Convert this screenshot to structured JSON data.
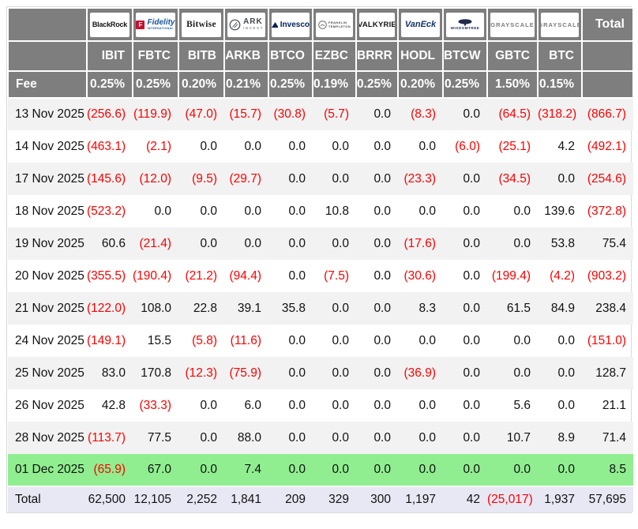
{
  "header": {
    "total_label": "Total",
    "logos": {
      "blackrock": {
        "name": "BlackRock",
        "text": "BlackRock"
      },
      "fidelity": {
        "name": "Fidelity",
        "badge": "F",
        "text": "Fidelity",
        "subtext": "INTERNATIONAL"
      },
      "bitwise": {
        "name": "Bitwise",
        "text": "Bitwise"
      },
      "ark": {
        "name": "ARK Invest",
        "text": "ARK",
        "subtext": "INVEST"
      },
      "invesco": {
        "name": "Invesco",
        "text": "Invesco"
      },
      "franklin": {
        "name": "Franklin Templeton",
        "line1": "FRANKLIN",
        "line2": "TEMPLETON"
      },
      "valkyrie": {
        "name": "Valkyrie",
        "text": "VALKYRIE"
      },
      "vaneck": {
        "name": "VanEck",
        "text": "VanEck"
      },
      "wisdomtree": {
        "name": "WisdomTree",
        "text": "WISDOMTREE"
      },
      "grayscale1": {
        "name": "Grayscale",
        "text": "GRAYSCALE"
      },
      "grayscale2": {
        "name": "Grayscale",
        "text": "GRAYSCALE"
      }
    }
  },
  "chart_data": {
    "type": "table",
    "tickers": [
      "IBIT",
      "FBTC",
      "BITB",
      "ARKB",
      "BTCO",
      "EZBC",
      "BRRR",
      "HODL",
      "BTCW",
      "GBTC",
      "BTC"
    ],
    "fee_label": "Fee",
    "fees": [
      "0.25%",
      "0.25%",
      "0.20%",
      "0.21%",
      "0.25%",
      "0.19%",
      "0.25%",
      "0.20%",
      "0.25%",
      "1.50%",
      "0.15%"
    ],
    "negative_format": "parentheses_red",
    "rows": [
      {
        "date": "13 Nov 2025",
        "values": [
          "(256.6)",
          "(119.9)",
          "(47.0)",
          "(15.7)",
          "(30.8)",
          "(5.7)",
          "0.0",
          "(8.3)",
          "0.0",
          "(64.5)",
          "(318.2)",
          "(866.7)"
        ]
      },
      {
        "date": "14 Nov 2025",
        "values": [
          "(463.1)",
          "(2.1)",
          "0.0",
          "0.0",
          "0.0",
          "0.0",
          "0.0",
          "0.0",
          "(6.0)",
          "(25.1)",
          "4.2",
          "(492.1)"
        ]
      },
      {
        "date": "17 Nov 2025",
        "values": [
          "(145.6)",
          "(12.0)",
          "(9.5)",
          "(29.7)",
          "0.0",
          "0.0",
          "0.0",
          "(23.3)",
          "0.0",
          "(34.5)",
          "0.0",
          "(254.6)"
        ]
      },
      {
        "date": "18 Nov 2025",
        "values": [
          "(523.2)",
          "0.0",
          "0.0",
          "0.0",
          "0.0",
          "10.8",
          "0.0",
          "0.0",
          "0.0",
          "0.0",
          "139.6",
          "(372.8)"
        ]
      },
      {
        "date": "19 Nov 2025",
        "values": [
          "60.6",
          "(21.4)",
          "0.0",
          "0.0",
          "0.0",
          "0.0",
          "0.0",
          "(17.6)",
          "0.0",
          "0.0",
          "53.8",
          "75.4"
        ]
      },
      {
        "date": "20 Nov 2025",
        "values": [
          "(355.5)",
          "(190.4)",
          "(21.2)",
          "(94.4)",
          "0.0",
          "(7.5)",
          "0.0",
          "(30.6)",
          "0.0",
          "(199.4)",
          "(4.2)",
          "(903.2)"
        ]
      },
      {
        "date": "21 Nov 2025",
        "values": [
          "(122.0)",
          "108.0",
          "22.8",
          "39.1",
          "35.8",
          "0.0",
          "0.0",
          "8.3",
          "0.0",
          "61.5",
          "84.9",
          "238.4"
        ]
      },
      {
        "date": "24 Nov 2025",
        "values": [
          "(149.1)",
          "15.5",
          "(5.8)",
          "(11.6)",
          "0.0",
          "0.0",
          "0.0",
          "0.0",
          "0.0",
          "0.0",
          "0.0",
          "(151.0)"
        ]
      },
      {
        "date": "25 Nov 2025",
        "values": [
          "83.0",
          "170.8",
          "(12.3)",
          "(75.9)",
          "0.0",
          "0.0",
          "0.0",
          "(36.9)",
          "0.0",
          "0.0",
          "0.0",
          "128.7"
        ]
      },
      {
        "date": "26 Nov 2025",
        "values": [
          "42.8",
          "(33.3)",
          "0.0",
          "6.0",
          "0.0",
          "0.0",
          "0.0",
          "0.0",
          "0.0",
          "5.6",
          "0.0",
          "21.1"
        ]
      },
      {
        "date": "28 Nov 2025",
        "values": [
          "(113.7)",
          "77.5",
          "0.0",
          "88.0",
          "0.0",
          "0.0",
          "0.0",
          "0.0",
          "0.0",
          "10.7",
          "8.9",
          "71.4"
        ]
      },
      {
        "date": "01 Dec 2025",
        "values": [
          "(65.9)",
          "67.0",
          "0.0",
          "7.4",
          "0.0",
          "0.0",
          "0.0",
          "0.0",
          "0.0",
          "0.0",
          "0.0",
          "8.5"
        ],
        "highlight": "green"
      }
    ],
    "total_row": {
      "label": "Total",
      "values": [
        "62,500",
        "12,105",
        "2,252",
        "1,841",
        "209",
        "329",
        "300",
        "1,197",
        "42",
        "(25,017)",
        "1,937",
        "57,695"
      ]
    }
  },
  "colors": {
    "header_bg": "#7e7e7e",
    "header_text": "#ffffff",
    "negative_red": "#fe0000",
    "highlight_green": "#90ee90",
    "total_row_bg": "#e8e8f4",
    "alt_row_bg": "#f2f2f2",
    "body_text": "#111111"
  }
}
